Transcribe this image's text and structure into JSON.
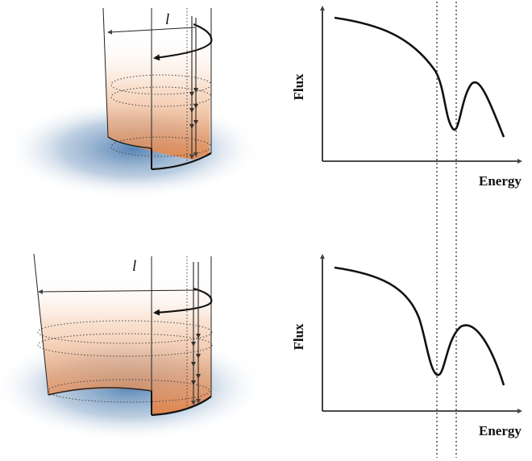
{
  "panels": [
    {
      "id": "top",
      "cylinder_label": "l",
      "plot": {
        "ylabel": "Flux",
        "xlabel": "Energy"
      }
    },
    {
      "id": "bottom",
      "cylinder_label": "l",
      "plot": {
        "ylabel": "Flux",
        "xlabel": "Energy"
      }
    }
  ],
  "colors": {
    "glow": "#e9824a",
    "floor": "#5b86b4",
    "ink": "#111111"
  }
}
